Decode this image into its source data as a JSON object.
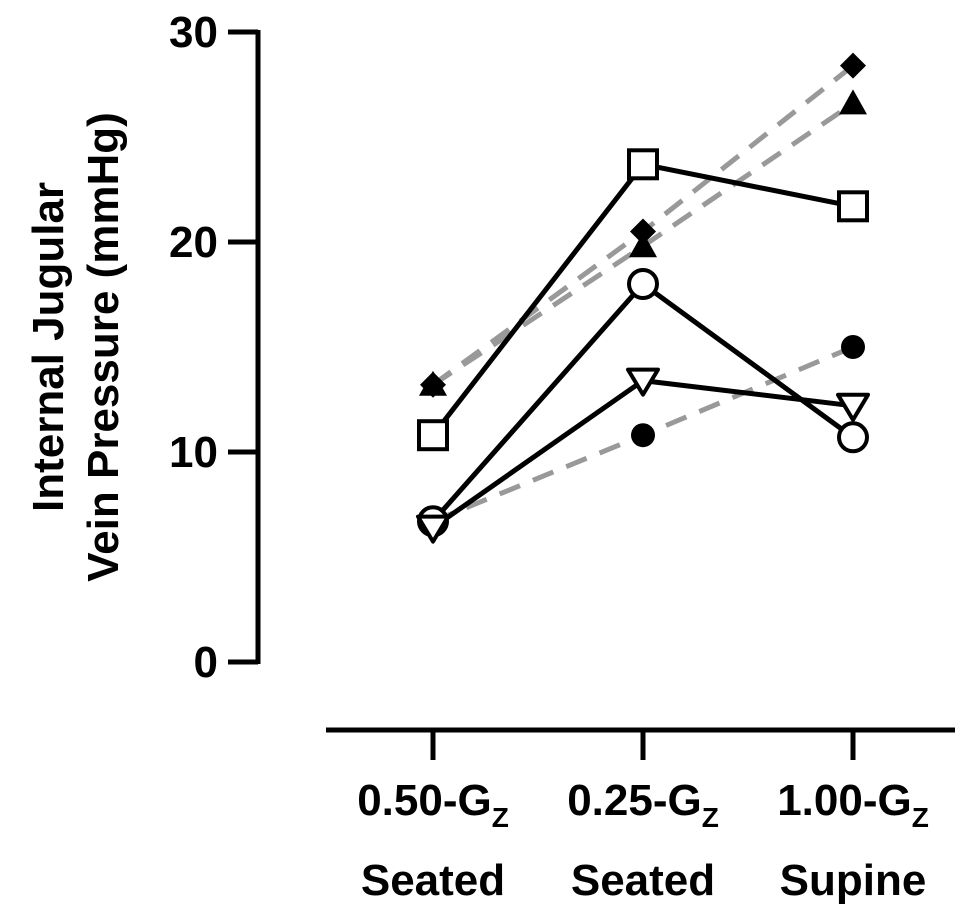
{
  "chart_data": {
    "type": "line",
    "ylabel_lines": [
      "Internal Jugular",
      "Vein Pressure (mmHg)"
    ],
    "xlabel": "",
    "ylim": [
      0,
      30
    ],
    "yticks": [
      "0",
      "10",
      "20",
      "30"
    ],
    "categories": [
      {
        "main": "0.50-G",
        "sub": "Z",
        "line2": "Seated"
      },
      {
        "main": "0.25-G",
        "sub": "Z",
        "line2": "Seated"
      },
      {
        "main": "1.00-G",
        "sub": "Z",
        "line2": "Supine"
      }
    ],
    "series": [
      {
        "marker": "diamond-filled",
        "line_style": "dashed",
        "color": "#999999",
        "values": [
          13.2,
          20.5,
          28.4
        ]
      },
      {
        "marker": "triangle-up-filled",
        "line_style": "dashed",
        "color": "#999999",
        "values": [
          13.2,
          19.8,
          26.6
        ]
      },
      {
        "marker": "circle-filled",
        "line_style": "dashed",
        "color": "#999999",
        "values": [
          6.7,
          10.8,
          15.0
        ]
      },
      {
        "marker": "square-open",
        "line_style": "solid",
        "color": "#000000",
        "values": [
          10.8,
          23.7,
          21.7
        ]
      },
      {
        "marker": "circle-open",
        "line_style": "solid",
        "color": "#000000",
        "values": [
          6.7,
          18.0,
          10.7
        ]
      },
      {
        "marker": "triangle-down-open",
        "line_style": "solid",
        "color": "#000000",
        "values": [
          6.4,
          13.4,
          12.2
        ]
      }
    ],
    "grid": false,
    "legend": "none"
  }
}
